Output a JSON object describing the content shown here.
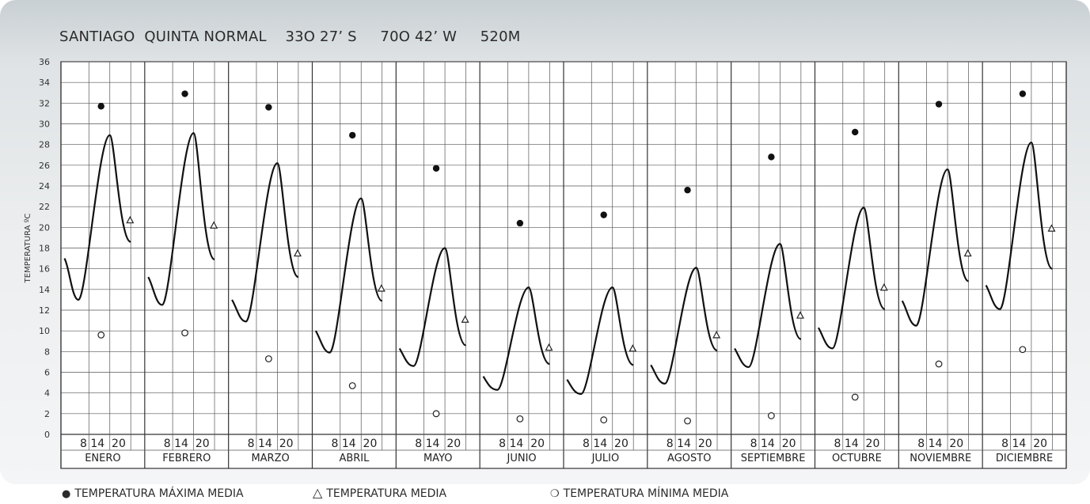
{
  "title": "SANTIAGO  QUINTA NORMAL    33O 27’ S     70O 42’ W     520M",
  "legend": [
    {
      "symbol": "●",
      "label": "TEMPERATURA MÁXIMA MEDIA"
    },
    {
      "symbol": "△",
      "label": "TEMPERATURA MEDIA"
    },
    {
      "symbol": "❍",
      "label": "TEMPERATURA MÍNIMA MEDIA"
    }
  ],
  "chart_data": {
    "type": "scatter",
    "ylabel": "TEMPERATURA ºC",
    "ylim": [
      0,
      36
    ],
    "yticks": [
      0,
      2,
      4,
      6,
      8,
      10,
      12,
      14,
      16,
      18,
      20,
      22,
      24,
      26,
      28,
      30,
      32,
      34,
      36
    ],
    "grid": true,
    "hour_labels": "8 14  20",
    "categories": [
      "ENERO",
      "FEBRERO",
      "MARZO",
      "ABRIL",
      "MAYO",
      "JUNIO",
      "JULIO",
      "AGOSTO",
      "SEPTIEMBRE",
      "OCTUBRE",
      "NOVIEMBRE",
      "DICIEMBRE"
    ],
    "series": [
      {
        "name": "TEMPERATURA MÁXIMA MEDIA",
        "marker": "filled-circle",
        "values": [
          31.7,
          32.9,
          31.6,
          28.9,
          25.7,
          20.4,
          21.2,
          23.6,
          26.8,
          29.2,
          31.9,
          32.9
        ]
      },
      {
        "name": "TEMPERATURA MEDIA",
        "marker": "triangle",
        "values": [
          20.7,
          20.2,
          17.5,
          14.1,
          11.1,
          8.4,
          8.3,
          9.6,
          11.5,
          14.2,
          17.5,
          19.9
        ]
      },
      {
        "name": "TEMPERATURA MÍNIMA MEDIA",
        "marker": "open-circle",
        "values": [
          9.6,
          9.8,
          7.3,
          4.7,
          2.0,
          1.5,
          1.4,
          1.3,
          1.8,
          3.6,
          6.8,
          8.2
        ]
      }
    ],
    "daily_curves": [
      {
        "month": "ENERO",
        "points": [
          [
            1,
            17.0
          ],
          [
            5,
            13.0
          ],
          [
            14,
            28.9
          ],
          [
            20,
            18.6
          ]
        ]
      },
      {
        "month": "FEBRERO",
        "points": [
          [
            1,
            15.2
          ],
          [
            5,
            12.5
          ],
          [
            14,
            29.1
          ],
          [
            20,
            16.9
          ]
        ]
      },
      {
        "month": "MARZO",
        "points": [
          [
            1,
            13.0
          ],
          [
            5,
            10.9
          ],
          [
            14,
            26.2
          ],
          [
            20,
            15.2
          ]
        ]
      },
      {
        "month": "ABRIL",
        "points": [
          [
            1,
            10.0
          ],
          [
            5,
            7.9
          ],
          [
            14,
            22.8
          ],
          [
            20,
            12.9
          ]
        ]
      },
      {
        "month": "MAYO",
        "points": [
          [
            1,
            8.3
          ],
          [
            5,
            6.6
          ],
          [
            14,
            18.0
          ],
          [
            20,
            8.6
          ]
        ]
      },
      {
        "month": "JUNIO",
        "points": [
          [
            1,
            5.6
          ],
          [
            5,
            4.3
          ],
          [
            14,
            14.2
          ],
          [
            20,
            6.8
          ]
        ]
      },
      {
        "month": "JULIO",
        "points": [
          [
            1,
            5.3
          ],
          [
            5,
            3.9
          ],
          [
            14,
            14.2
          ],
          [
            20,
            6.7
          ]
        ]
      },
      {
        "month": "AGOSTO",
        "points": [
          [
            1,
            6.7
          ],
          [
            5,
            4.9
          ],
          [
            14,
            16.1
          ],
          [
            20,
            8.1
          ]
        ]
      },
      {
        "month": "SEPTIEMBRE",
        "points": [
          [
            1,
            8.3
          ],
          [
            5,
            6.5
          ],
          [
            14,
            18.4
          ],
          [
            20,
            9.2
          ]
        ]
      },
      {
        "month": "OCTUBRE",
        "points": [
          [
            1,
            10.3
          ],
          [
            5,
            8.3
          ],
          [
            14,
            21.9
          ],
          [
            20,
            12.1
          ]
        ]
      },
      {
        "month": "NOVIEMBRE",
        "points": [
          [
            1,
            12.9
          ],
          [
            5,
            10.5
          ],
          [
            14,
            25.6
          ],
          [
            20,
            14.8
          ]
        ]
      },
      {
        "month": "DICIEMBRE",
        "points": [
          [
            1,
            14.4
          ],
          [
            5,
            12.1
          ],
          [
            14,
            28.2
          ],
          [
            20,
            16.0
          ]
        ]
      }
    ]
  }
}
